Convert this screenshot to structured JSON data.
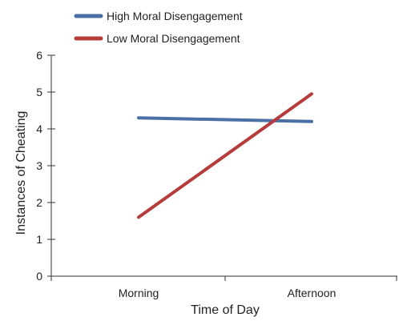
{
  "chart_data": {
    "type": "line",
    "title": "",
    "categories": [
      "Morning",
      "Afternoon"
    ],
    "series": [
      {
        "name": "High Moral Disengagement",
        "values": [
          4.3,
          4.2
        ],
        "color": "#4a6fa5"
      },
      {
        "name": "Low Moral Disengagement",
        "values": [
          1.6,
          4.95
        ],
        "color": "#b63b3b"
      }
    ],
    "xlabel": "Time of Day",
    "ylabel": "Instances of Cheating",
    "ylim": [
      0,
      6
    ],
    "yticks": [
      0,
      1,
      2,
      3,
      4,
      5,
      6
    ],
    "grid": false,
    "legend_position": "top-left"
  }
}
